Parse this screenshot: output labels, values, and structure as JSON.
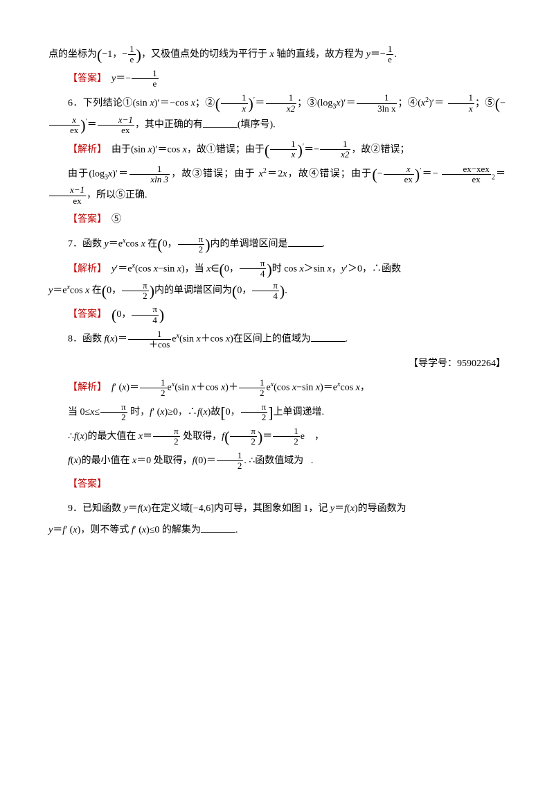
{
  "labels": {
    "answer": "【答案】",
    "analysis": "【解析】"
  },
  "p1": {
    "pre": "点的坐标为",
    "lp": "(",
    "neg1": "−1，",
    "minus": "−",
    "f1n": "1",
    "f1d": "e",
    "rp": ")",
    "mid": "，又极值点处的切线为平行于 ",
    "xvar": "x",
    "mid2": " 轴的直线，故方程为 ",
    "yvar": "y",
    "eq": "＝−",
    "f2n": "1",
    "f2d": "e",
    "end": "."
  },
  "ans1": {
    "y": "y",
    "eq": "＝−",
    "n": "1",
    "d": "e"
  },
  "q6": {
    "lead": "6．下列结论①(sin ",
    "x": "x",
    "a": ")′＝−cos ",
    "b": "；②",
    "lp": "(",
    "rp": ")",
    "f1n": "1",
    "f1d": "x",
    "prime": "′",
    "eq": "＝",
    "f2n": "1",
    "f2d": "x2",
    "c": "；③(log",
    "s3": "3",
    "d": ")′＝",
    "f3n": "1",
    "f3d": "3ln x",
    "e": "；④(",
    "x2": "x",
    "sq": "2",
    "f": ")′＝",
    "g": "；⑤",
    "f4n": "1",
    "f4d": "x",
    "h": "−",
    "f5n": "x",
    "f5d": "ex",
    "i": "＝",
    "f6n": "x−1",
    "f6d": "ex",
    "j": "，其中正确的有",
    "k": "(填序号)."
  },
  "a6": {
    "a": "由于(sin ",
    "x": "x",
    "b": ")′＝cos ",
    "c": "，故①错误；由于",
    "lp": "(",
    "rp": ")",
    "f1n": "1",
    "f1d": "x",
    "prime": "′",
    "eq": "＝−",
    "f2n": "1",
    "f2d": "x2",
    "d": "，故②错误；",
    "e": "由于(log",
    "s3": "3",
    "f": ")′＝",
    "f3n": "1",
    "f3d": "xln 3",
    "g": "，故③错误；由于 ",
    "h": "＝2",
    "i": "，故④错误；由于",
    "j": "−",
    "f4n": "x",
    "f4d": "ex",
    "k": "＝−",
    "f5n": "ex−xex",
    "f5d": "ex",
    "sq": "2",
    "l": "＝",
    "f6n": "x−1",
    "f6d": "ex",
    "m": "，所以⑤正确."
  },
  "ans6": "⑤",
  "q7": {
    "a": "7．函数 ",
    "y": "y",
    "eq": "＝e",
    "xs": "x",
    "cos": "cos ",
    "x": "x",
    "b": " 在",
    "lp": "(",
    "rp": ")",
    "zero": "0，",
    "pn": "π",
    "pd": "2",
    "c": "内的单调增区间是",
    "d": "."
  },
  "a7": {
    "a": "y",
    "p": "′＝e",
    "xs": "x",
    "b": "(cos ",
    "x": "x",
    "c": "−sin ",
    "d": ")，当 ",
    "e": "∈",
    "lp": "(",
    "rp": ")",
    "zero": "0，",
    "pn": "π",
    "pd": "4",
    "f": "时 cos ",
    "g": "＞sin ",
    "h": "，",
    "i": "′＞0，∴函数",
    "j": "＝e",
    "k": "cos ",
    "l": " 在",
    "pd2": "2",
    "m": "内的单调增区间为",
    "n": "."
  },
  "ans7": {
    "lp": "(",
    "rp": ")",
    "zero": "0，",
    "pn": "π",
    "pd": "4"
  },
  "q8": {
    "a": "8．函数 ",
    "fx": "f",
    "lp": "(",
    "x": "x",
    "rp": ")＝",
    "n": "1",
    "d": "＋cos ",
    "b": "e",
    "xs": "x",
    "c": "(sin ",
    "e": ")在区间上的值域为",
    "f": "."
  },
  "guide": "【导学号：95902264】",
  "a8": {
    "a": "f",
    "p": "′ (",
    "x": "x",
    "b": ")＝",
    "n": "1",
    "d": "2",
    "c": "e",
    "xs": "x",
    "dd": "(sin ",
    "e": "＋cos ",
    "f": ")＋",
    "g": "(cos ",
    "h": "−sin ",
    "i": ")＝e",
    "j": "cos ",
    "k": "，",
    "l1": "当 0≤",
    "l2": "≤",
    "pn": "π",
    "pd": "2",
    "l3": " 时，",
    "l4": "′ (",
    "l5": ")≥0，∴",
    "l6": "故",
    "lb": "[",
    "rb": "]",
    "zero": "0，",
    "l7": "上单调递增.",
    "m1": "∴",
    "m2": "的最大值在 ",
    "m3": "＝",
    "m4": " 处取得，",
    "m5": "＝",
    "m6": "e",
    "m7": "，",
    "n1": "的最小值在 ",
    "n2": "＝0 处取得，",
    "n3": "(0)＝",
    "n4": ". ∴函数值域为",
    "n5": "."
  },
  "q9": {
    "a": "9．已知函数 ",
    "y": "y",
    "eq": "＝",
    "fx": "f",
    "lp": "(",
    "x": "x",
    "rp": ")",
    "b": "在定义域[−4,6]内可导，其图象如图 1，记 ",
    "c": "的导函数为",
    "d": "＝",
    "p": "′ (",
    "e": ")，则不等式 ",
    "f": "′ (",
    "g": ")≤0 的解集为",
    "h": "."
  }
}
